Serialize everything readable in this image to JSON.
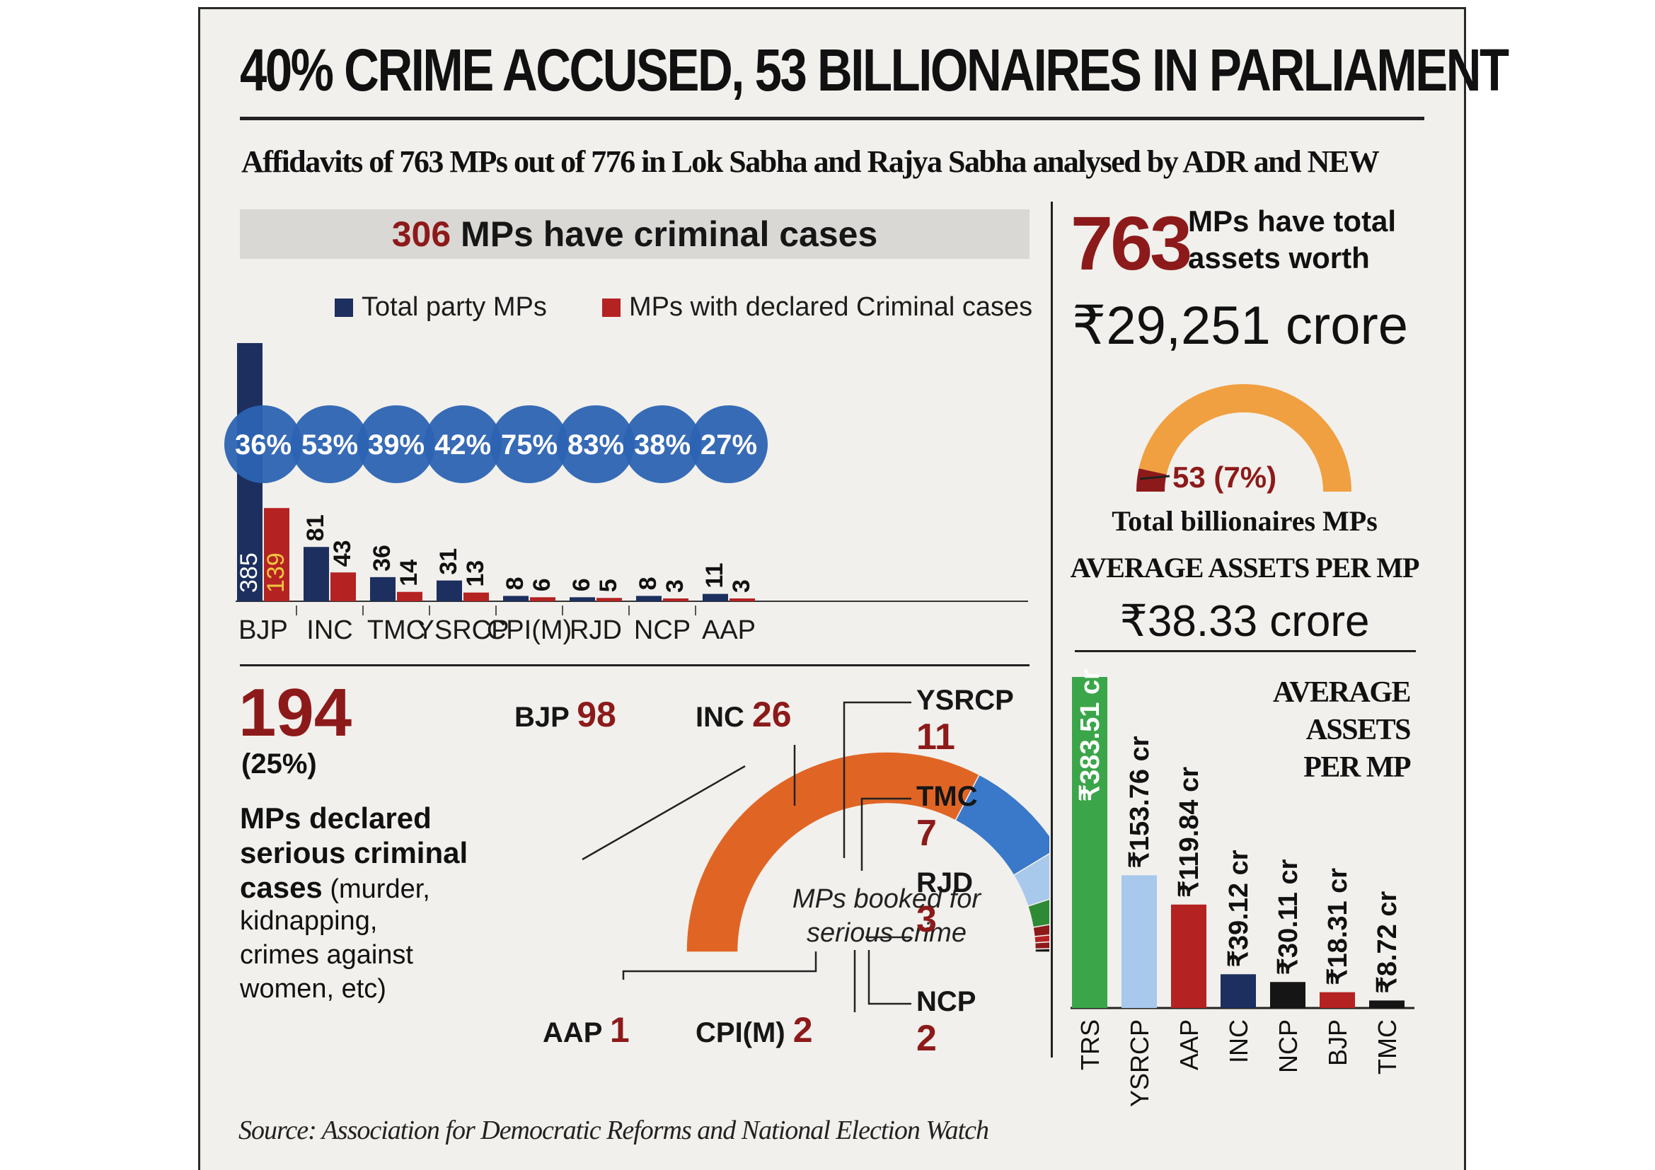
{
  "title": "40% CRIME ACCUSED, 53 BILLIONAIRES IN PARLIAMENT",
  "subtitle": "Affidavits of 763 MPs out of 776 in Lok Sabha and Rajya Sabha analysed by ADR and NEW",
  "criminal_section": {
    "heading_number": "306",
    "heading_text": "MPs have criminal cases",
    "legend_total": "Total party MPs",
    "legend_criminal": "MPs with declared Criminal cases"
  },
  "serious_section": {
    "count": "194",
    "percent": "(25%)",
    "desc_bold_1": "MPs declared",
    "desc_bold_2": "serious criminal",
    "desc_bold_3": "cases",
    "desc_normal_3": "(murder,",
    "desc_4": "kidnapping,",
    "desc_5": "crimes against",
    "desc_6": "women, etc)",
    "center_label_1": "MPs booked for",
    "center_label_2": "serious crime"
  },
  "assets_section": {
    "count": "763",
    "label_1": "MPs have total",
    "label_2": "assets worth",
    "total": "₹29,251 crore",
    "billionaires_label": "53 (7%)",
    "billionaires_caption": "Total billionaires MPs",
    "avg_heading": "AVERAGE ASSETS PER MP",
    "avg_value": "₹38.33 crore",
    "avg_party_heading_1": "AVERAGE",
    "avg_party_heading_2": "ASSETS",
    "avg_party_heading_3": "PER MP"
  },
  "source": "Source: Association for Democratic Reforms and National Election Watch",
  "colors": {
    "navy": "#1c2f5e",
    "maroon": "#8d1a1a",
    "red": "#b52222",
    "circle": "#2c63b3",
    "orange": "#e06525",
    "blue": "#3a78c9",
    "lightblue": "#a8c8ec",
    "green": "#2f8a36",
    "bright_green": "#3ba54a",
    "gauge": "#f0a040",
    "black": "#151515"
  },
  "chart_data": [
    {
      "type": "bar",
      "title": "306 MPs have criminal cases",
      "categories": [
        "BJP",
        "INC",
        "TMC",
        "YSRCP",
        "CPI(M)",
        "RJD",
        "NCP",
        "AAP"
      ],
      "series": [
        {
          "name": "Total party MPs",
          "values": [
            385,
            81,
            36,
            31,
            8,
            6,
            8,
            11
          ]
        },
        {
          "name": "MPs with declared Criminal cases",
          "values": [
            139,
            43,
            14,
            13,
            6,
            5,
            3,
            3
          ]
        }
      ],
      "percent_labels": [
        "36%",
        "53%",
        "39%",
        "42%",
        "75%",
        "83%",
        "38%",
        "27%"
      ],
      "ylim": [
        0,
        385
      ]
    },
    {
      "type": "pie",
      "title": "MPs booked for serious crime",
      "labels": [
        "BJP",
        "INC",
        "YSRCP",
        "TMC",
        "RJD",
        "CPI(M)",
        "NCP",
        "AAP"
      ],
      "values": [
        98,
        26,
        11,
        7,
        3,
        2,
        2,
        1
      ],
      "total": 194
    },
    {
      "type": "pie",
      "title": "Total billionaires MPs",
      "labels": [
        "Billionaire MPs",
        "Other MPs"
      ],
      "values": [
        53,
        710
      ],
      "annotation": "53 (7%)"
    },
    {
      "type": "bar",
      "title": "AVERAGE ASSETS PER MP",
      "categories": [
        "TRS",
        "YSRCP",
        "AAP",
        "INC",
        "NCP",
        "BJP",
        "TMC"
      ],
      "values": [
        383.51,
        153.76,
        119.84,
        39.12,
        30.11,
        18.31,
        8.72
      ],
      "value_labels": [
        "₹383.51 cr",
        "₹153.76 cr",
        "₹119.84 cr",
        "₹39.12 cr",
        "₹30.11 cr",
        "₹18.31 cr",
        "₹8.72 cr"
      ],
      "ylim": [
        0,
        383.51
      ]
    }
  ]
}
